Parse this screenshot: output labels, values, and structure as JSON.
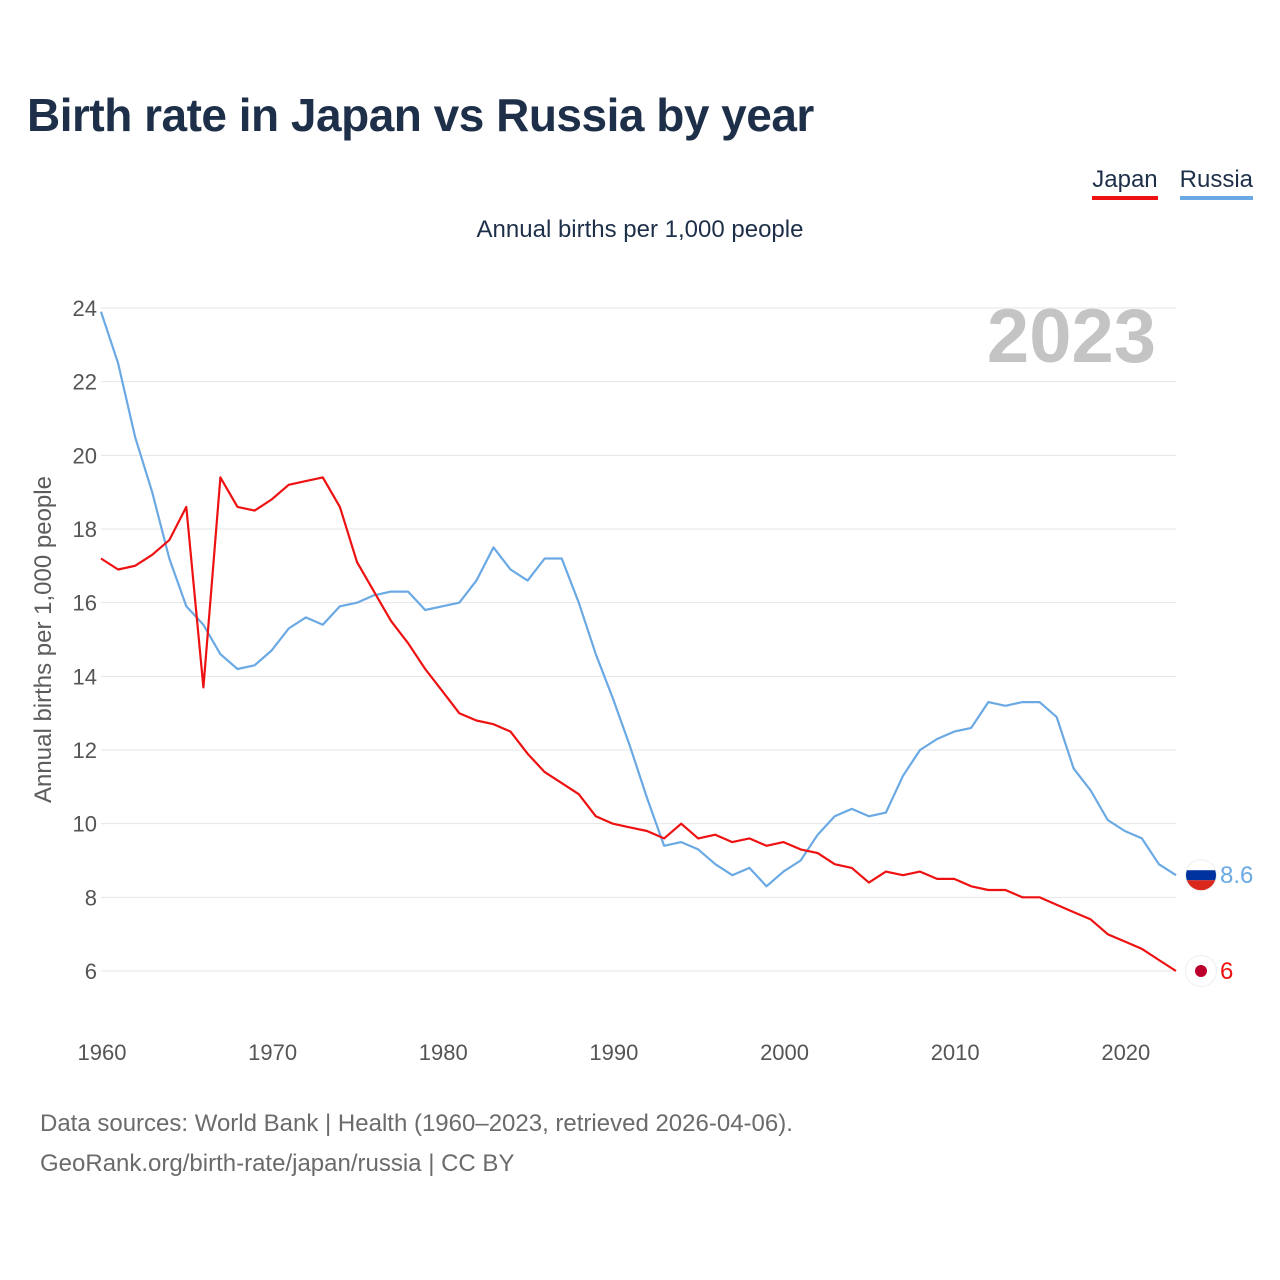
{
  "chart_data": {
    "type": "line",
    "title": "Birth rate in Japan vs Russia by year",
    "subtitle": "Annual births per 1,000 people",
    "ylabel": "Annual births per 1,000 people",
    "xlabel": "",
    "year_label": "2023",
    "xlim": [
      1960,
      2023
    ],
    "ylim": [
      6,
      24
    ],
    "yticks": [
      6,
      8,
      10,
      12,
      14,
      16,
      18,
      20,
      22,
      24
    ],
    "xticks": [
      1960,
      1970,
      1980,
      1990,
      2000,
      2010,
      2020
    ],
    "grid": true,
    "legend_position": "top-right",
    "x": [
      1960,
      1961,
      1962,
      1963,
      1964,
      1965,
      1966,
      1967,
      1968,
      1969,
      1970,
      1971,
      1972,
      1973,
      1974,
      1975,
      1976,
      1977,
      1978,
      1979,
      1980,
      1981,
      1982,
      1983,
      1984,
      1985,
      1986,
      1987,
      1988,
      1989,
      1990,
      1991,
      1992,
      1993,
      1994,
      1995,
      1996,
      1997,
      1998,
      1999,
      2000,
      2001,
      2002,
      2003,
      2004,
      2005,
      2006,
      2007,
      2008,
      2009,
      2010,
      2011,
      2012,
      2013,
      2014,
      2015,
      2016,
      2017,
      2018,
      2019,
      2020,
      2021,
      2022,
      2023
    ],
    "series": [
      {
        "name": "Japan",
        "color": "#ee1111",
        "end_label": "6",
        "values": [
          17.2,
          16.9,
          17.0,
          17.3,
          17.7,
          18.6,
          13.7,
          19.4,
          18.6,
          18.5,
          18.8,
          19.2,
          19.3,
          19.4,
          18.6,
          17.1,
          16.3,
          15.5,
          14.9,
          14.2,
          13.6,
          13.0,
          12.8,
          12.7,
          12.5,
          11.9,
          11.4,
          11.1,
          10.8,
          10.2,
          10.0,
          9.9,
          9.8,
          9.6,
          10.0,
          9.6,
          9.7,
          9.5,
          9.6,
          9.4,
          9.5,
          9.3,
          9.2,
          8.9,
          8.8,
          8.4,
          8.7,
          8.6,
          8.7,
          8.5,
          8.5,
          8.3,
          8.2,
          8.2,
          8.0,
          8.0,
          7.8,
          7.6,
          7.4,
          7.0,
          6.8,
          6.6,
          6.3,
          6.0
        ]
      },
      {
        "name": "Russia",
        "color": "#6aa9e4",
        "end_label": "8.6",
        "values": [
          23.9,
          22.5,
          20.5,
          19.0,
          17.2,
          15.9,
          15.4,
          14.6,
          14.2,
          14.3,
          14.7,
          15.3,
          15.6,
          15.4,
          15.9,
          16.0,
          16.2,
          16.3,
          16.3,
          15.8,
          15.9,
          16.0,
          16.6,
          17.5,
          16.9,
          16.6,
          17.2,
          17.2,
          16.0,
          14.6,
          13.4,
          12.1,
          10.7,
          9.4,
          9.5,
          9.3,
          8.9,
          8.6,
          8.8,
          8.3,
          8.7,
          9.0,
          9.7,
          10.2,
          10.4,
          10.2,
          10.3,
          11.3,
          12.0,
          12.3,
          12.5,
          12.6,
          13.3,
          13.2,
          13.3,
          13.3,
          12.9,
          11.5,
          10.9,
          10.1,
          9.8,
          9.6,
          8.9,
          8.6
        ]
      }
    ]
  },
  "legend": {
    "japan": "Japan",
    "russia": "Russia"
  },
  "footer": {
    "sources": "Data sources: World Bank | Health (1960–2023, retrieved 2026-04-06).",
    "credit": "GeoRank.org/birth-rate/japan/russia | CC BY"
  },
  "flags": {
    "russia": [
      "#ffffff",
      "#0033a0",
      "#da291c"
    ],
    "japan": [
      "#ffffff",
      "#bc002d"
    ]
  }
}
